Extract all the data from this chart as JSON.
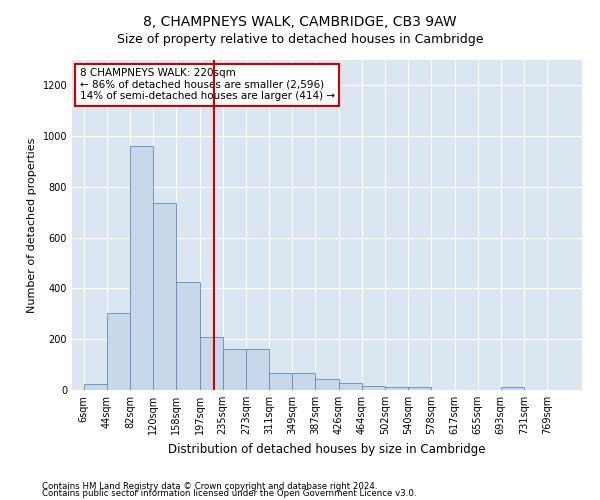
{
  "title": "8, CHAMPNEYS WALK, CAMBRIDGE, CB3 9AW",
  "subtitle": "Size of property relative to detached houses in Cambridge",
  "xlabel": "Distribution of detached houses by size in Cambridge",
  "ylabel": "Number of detached properties",
  "bar_color": "#c8d8ea",
  "bar_edgecolor": "#5b8db8",
  "vline_color": "#cc0000",
  "annotation_box_text": "8 CHAMPNEYS WALK: 220sqm\n← 86% of detached houses are smaller (2,596)\n14% of semi-detached houses are larger (414) →",
  "annotation_box_color": "#cc0000",
  "footnote1": "Contains HM Land Registry data © Crown copyright and database right 2024.",
  "footnote2": "Contains public sector information licensed under the Open Government Licence v3.0.",
  "bin_labels": [
    "6sqm",
    "44sqm",
    "82sqm",
    "120sqm",
    "158sqm",
    "197sqm",
    "235sqm",
    "273sqm",
    "311sqm",
    "349sqm",
    "387sqm",
    "426sqm",
    "464sqm",
    "502sqm",
    "540sqm",
    "578sqm",
    "617sqm",
    "655sqm",
    "693sqm",
    "731sqm",
    "769sqm"
  ],
  "counts": [
    25,
    305,
    960,
    735,
    425,
    210,
    162,
    162,
    68,
    68,
    45,
    28,
    15,
    10,
    10,
    0,
    0,
    0,
    10,
    0,
    0
  ],
  "ylim": [
    0,
    1300
  ],
  "yticks": [
    0,
    200,
    400,
    600,
    800,
    1000,
    1200
  ],
  "ax_facecolor": "#dce6f0",
  "grid_color": "#ffffff",
  "title_fontsize": 10,
  "subtitle_fontsize": 9,
  "ylabel_fontsize": 8,
  "xlabel_fontsize": 8.5,
  "tick_fontsize": 7,
  "annot_fontsize": 7.5,
  "footnote_fontsize": 6.2
}
